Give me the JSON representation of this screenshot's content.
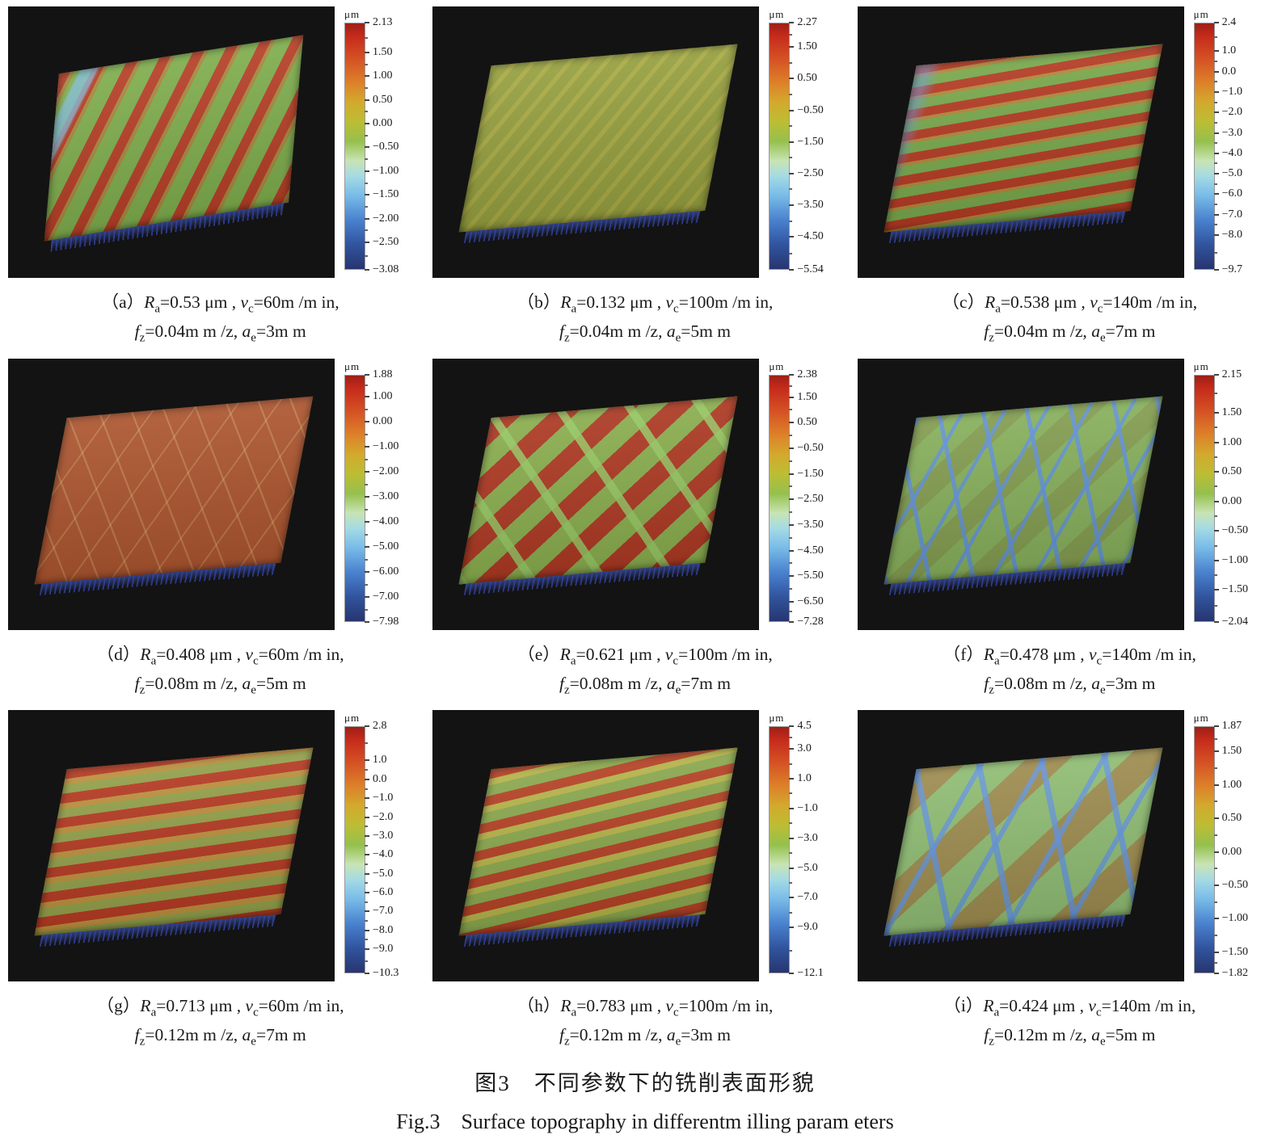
{
  "figure": {
    "title_zh": "图3　不同参数下的铣削表面形貌",
    "title_en": "Fig.3　Surface topography in differentm illing param eters"
  },
  "colorbar_unit": "μm",
  "panels": [
    {
      "id": "a",
      "caption_line1": "（a）R_[a]=0.53 μm , v_[c]=60m /m in,",
      "caption_line2": "f_[z]=0.04m m /z, a_[e]=3m m",
      "surface_type": "diagonal red-green milling ridges with blue streak",
      "colorbar": {
        "max": 2.13,
        "min": -3.08,
        "ticks": [
          "2.13",
          "1.50",
          "1.00",
          "0.50",
          "0.00",
          "-0.50",
          "-1.00",
          "-1.50",
          "-2.00",
          "-2.50",
          "-3.08"
        ]
      }
    },
    {
      "id": "b",
      "caption_line1": "（b）R_[a]=0.132 μm , v_[c]=100m /m in,",
      "caption_line2": "f_[z]=0.04m m /z, a_[e]=5m m",
      "surface_type": "uniform fine olive-green texture",
      "colorbar": {
        "max": 2.27,
        "min": -5.54,
        "ticks": [
          "2.27",
          "1.50",
          "0.50",
          "-0.50",
          "-1.50",
          "-2.50",
          "-3.50",
          "-4.50",
          "-5.54"
        ]
      }
    },
    {
      "id": "c",
      "caption_line1": "（c）R_[a]=0.538 μm , v_[c]=140m /m in,",
      "caption_line2": "f_[z]=0.04m m /z, a_[e]=7m m",
      "surface_type": "dense horizontal red ridges on green",
      "colorbar": {
        "max": 2.4,
        "min": -9.7,
        "ticks": [
          "2.4",
          "1.0",
          "0.0",
          "-1.0",
          "-2.0",
          "-3.0",
          "-4.0",
          "-5.0",
          "-6.0",
          "-7.0",
          "-8.0",
          "-9.7"
        ]
      }
    },
    {
      "id": "d",
      "caption_line1": "（d）R_[a]=0.408 μm , v_[c]=60m /m in,",
      "caption_line2": "f_[z]=0.08m m /z, a_[e]=5m m",
      "surface_type": "uniform red-orange texture with faint crossing lines",
      "colorbar": {
        "max": 1.88,
        "min": -7.98,
        "ticks": [
          "1.88",
          "1.00",
          "0.00",
          "-1.00",
          "-2.00",
          "-3.00",
          "-4.00",
          "-5.00",
          "-6.00",
          "-7.00",
          "-7.98"
        ]
      }
    },
    {
      "id": "e",
      "caption_line1": "（e）R_[a]=0.621 μm , v_[c]=100m /m in,",
      "caption_line2": "f_[z]=0.08m m /z, a_[e]=7m m",
      "surface_type": "red patches with crossing green bands",
      "colorbar": {
        "max": 2.38,
        "min": -7.28,
        "ticks": [
          "2.38",
          "1.50",
          "0.50",
          "-0.50",
          "-1.50",
          "-2.50",
          "-3.50",
          "-4.50",
          "-5.50",
          "-6.50",
          "-7.28"
        ]
      }
    },
    {
      "id": "f",
      "caption_line1": "（f）R_[a]=0.478 μm , v_[c]=140m /m in,",
      "caption_line2": "f_[z]=0.08m m /z, a_[e]=3m m",
      "surface_type": "green surface with blue crosshatch grooves",
      "colorbar": {
        "max": 2.15,
        "min": -2.04,
        "ticks": [
          "2.15",
          "1.50",
          "1.00",
          "0.50",
          "0.00",
          "-0.50",
          "-1.00",
          "-1.50",
          "-2.04"
        ]
      }
    },
    {
      "id": "g",
      "caption_line1": "（g）R_[a]=0.713 μm , v_[c]=60m /m in,",
      "caption_line2": "f_[z]=0.12m m /z, a_[e]=7m m",
      "surface_type": "horizontal red-orange ridges on green",
      "colorbar": {
        "max": 2.8,
        "min": -10.3,
        "ticks": [
          "2.8",
          "1.0",
          "0.0",
          "-1.0",
          "-2.0",
          "-3.0",
          "-4.0",
          "-5.0",
          "-6.0",
          "-7.0",
          "-8.0",
          "-9.0",
          "-10.3"
        ]
      }
    },
    {
      "id": "h",
      "caption_line1": "（h）R_[a]=0.783 μm , v_[c]=100m /m in,",
      "caption_line2": "f_[z]=0.12m m /z, a_[e]=3m m",
      "surface_type": "shallow diagonal red and yellow-green ridges",
      "colorbar": {
        "max": 4.5,
        "min": -12.1,
        "ticks": [
          "4.5",
          "3.0",
          "1.0",
          "-1.0",
          "-3.0",
          "-5.0",
          "-7.0",
          "-9.0",
          "-12.1"
        ]
      }
    },
    {
      "id": "i",
      "caption_line1": "（i）R_[a]=0.424 μm , v_[c]=140m /m in,",
      "caption_line2": "f_[z]=0.12m m /z, a_[e]=5m m",
      "surface_type": "light-green surface with blue crosshatch and brown patches",
      "colorbar": {
        "max": 1.87,
        "min": -1.82,
        "ticks": [
          "1.87",
          "1.50",
          "1.00",
          "0.50",
          "0.00",
          "-0.50",
          "-1.00",
          "-1.50",
          "-1.82"
        ]
      }
    }
  ]
}
